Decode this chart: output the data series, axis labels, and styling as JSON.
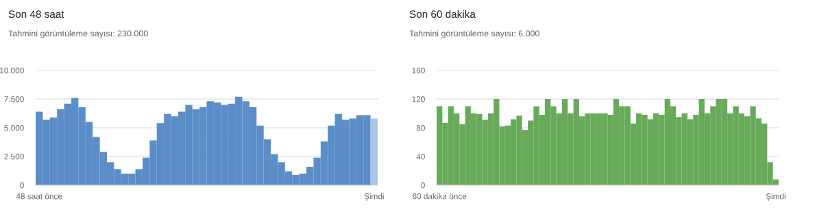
{
  "chart_data": [
    {
      "type": "bar",
      "title": "Son 48 saat",
      "subtitle": "Tahmini görüntüleme sayısı: 230.000",
      "categories": [
        "48 saat önce",
        null,
        null,
        null,
        null,
        null,
        null,
        null,
        null,
        null,
        null,
        null,
        null,
        null,
        null,
        null,
        null,
        null,
        null,
        null,
        null,
        null,
        null,
        null,
        null,
        null,
        null,
        null,
        null,
        null,
        null,
        null,
        null,
        null,
        null,
        null,
        null,
        null,
        null,
        null,
        null,
        null,
        null,
        null,
        null,
        null,
        null,
        "Şimdi"
      ],
      "values": [
        6400,
        5700,
        5900,
        6600,
        7100,
        7600,
        6800,
        5500,
        4200,
        2900,
        2000,
        1400,
        1000,
        1000,
        1400,
        2400,
        3900,
        5400,
        6200,
        6000,
        6400,
        7000,
        6600,
        6800,
        7300,
        7200,
        7000,
        7100,
        7700,
        7300,
        6800,
        5200,
        4000,
        2700,
        2000,
        1200,
        900,
        1000,
        1600,
        2400,
        3800,
        5200,
        6200,
        5700,
        5800,
        6100,
        6100,
        5800
      ],
      "colors": [
        "#5b8dc8",
        "#5b8dc8",
        "#5b8dc8",
        "#5b8dc8",
        "#5b8dc8",
        "#5b8dc8",
        "#5b8dc8",
        "#5b8dc8",
        "#5b8dc8",
        "#5b8dc8",
        "#5b8dc8",
        "#5b8dc8",
        "#5b8dc8",
        "#5b8dc8",
        "#5b8dc8",
        "#5b8dc8",
        "#5b8dc8",
        "#5b8dc8",
        "#5b8dc8",
        "#5b8dc8",
        "#5b8dc8",
        "#5b8dc8",
        "#5b8dc8",
        "#5b8dc8",
        "#5b8dc8",
        "#5b8dc8",
        "#5b8dc8",
        "#5b8dc8",
        "#5b8dc8",
        "#5b8dc8",
        "#5b8dc8",
        "#5b8dc8",
        "#5b8dc8",
        "#5b8dc8",
        "#5b8dc8",
        "#5b8dc8",
        "#5b8dc8",
        "#5b8dc8",
        "#5b8dc8",
        "#5b8dc8",
        "#5b8dc8",
        "#5b8dc8",
        "#5b8dc8",
        "#5b8dc8",
        "#5b8dc8",
        "#5b8dc8",
        "#5b8dc8",
        "#adc6e6"
      ],
      "ylim": [
        0,
        10000
      ],
      "yticks": [
        {
          "value": 0,
          "label": "0"
        },
        {
          "value": 2500,
          "label": "2.500"
        },
        {
          "value": 5000,
          "label": "5.000"
        },
        {
          "value": 7500,
          "label": "7.500"
        },
        {
          "value": 10000,
          "label": "10.000"
        }
      ],
      "grid": "y"
    },
    {
      "type": "bar",
      "title": "Son 60 dakika",
      "subtitle": "Tahmini görüntüleme sayısı: 6.000",
      "categories": [
        "60 dakika önce",
        null,
        null,
        null,
        null,
        null,
        null,
        null,
        null,
        null,
        null,
        null,
        null,
        null,
        null,
        null,
        null,
        null,
        null,
        null,
        null,
        null,
        null,
        null,
        null,
        null,
        null,
        null,
        null,
        null,
        null,
        null,
        null,
        null,
        null,
        null,
        null,
        null,
        null,
        null,
        null,
        null,
        null,
        null,
        null,
        null,
        null,
        null,
        null,
        null,
        null,
        null,
        null,
        null,
        null,
        null,
        null,
        null,
        null,
        "Şimdi"
      ],
      "values": [
        110,
        87,
        110,
        100,
        85,
        110,
        100,
        99,
        91,
        100,
        120,
        82,
        83,
        92,
        97,
        77,
        90,
        110,
        98,
        120,
        110,
        100,
        120,
        100,
        120,
        96,
        100,
        100,
        100,
        100,
        98,
        120,
        110,
        110,
        86,
        100,
        98,
        92,
        100,
        98,
        120,
        110,
        95,
        100,
        92,
        98,
        120,
        100,
        110,
        120,
        120,
        100,
        110,
        100,
        96,
        110,
        93,
        86,
        32,
        8
      ],
      "color": "#67aa59",
      "ylim": [
        0,
        160
      ],
      "yticks": [
        0,
        40,
        80,
        120,
        160
      ],
      "grid": "y"
    }
  ]
}
